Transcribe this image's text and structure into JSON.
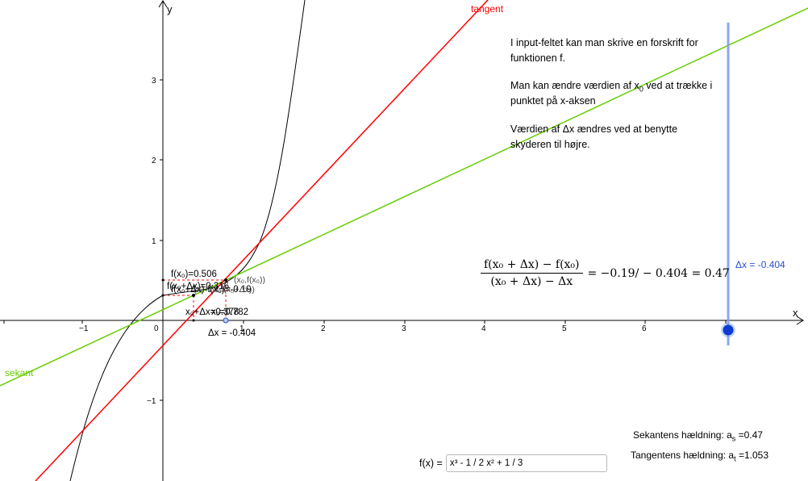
{
  "axes": {
    "x_label": "x",
    "y_label": "y",
    "x_ticks": [
      "−1",
      "0",
      "1",
      "2",
      "3",
      "4",
      "5",
      "6"
    ],
    "y_ticks": [
      "3",
      "2",
      "1",
      "−1"
    ]
  },
  "labels": {
    "tangent": "tangent",
    "sekant": "sekant",
    "f_x0": "f(x₀)=0.506",
    "f_x0_dx": "f(x₀+Δx)=0.316",
    "diff": "f(x₀+Δx)-f(x₀)=-0.19",
    "point_x0": "(x₀,f(x₀))",
    "point_x0_dx": "(x₀+Δx,f(x₀+Δx))",
    "x0_dx": "x₀+Δx=0.378",
    "x0": "x₀=0.782",
    "delta_x": "Δx = -0.404"
  },
  "info": {
    "p1": "I input-feltet kan man skrive en forskrift for funktionen f.",
    "p2_a": "Man kan ændre værdien af x",
    "p2_sub": "0",
    "p2_b": " ved at trække i punktet på x-aksen",
    "p3": "Værdien af Δx ændres ved at benytte skyderen til højre."
  },
  "formula": {
    "numerator": "f(x₀ + Δx) − f(x₀)",
    "denominator": "(x₀ + Δx) − Δx",
    "result": "= −0.19/ − 0.404 = 0.47"
  },
  "slider": {
    "label": "Δx = -0.404",
    "value": -0.404
  },
  "slopes": {
    "secant_label": "Sekantens hældning: a",
    "secant_sub": "s",
    "secant_value": " =0.47",
    "tangent_label": "Tangentens hældning: a",
    "tangent_sub": "t",
    "tangent_value": " =1.053"
  },
  "input": {
    "label": "f(x) =",
    "value": "x³ - 1 / 2 x² + 1 / 3"
  },
  "colors": {
    "tangent": "#ff0000",
    "secant": "#66cc00",
    "curve": "#000000",
    "slider": "#7d9eea",
    "slider_knob": "#0b3bd3",
    "axis": "#000000"
  }
}
